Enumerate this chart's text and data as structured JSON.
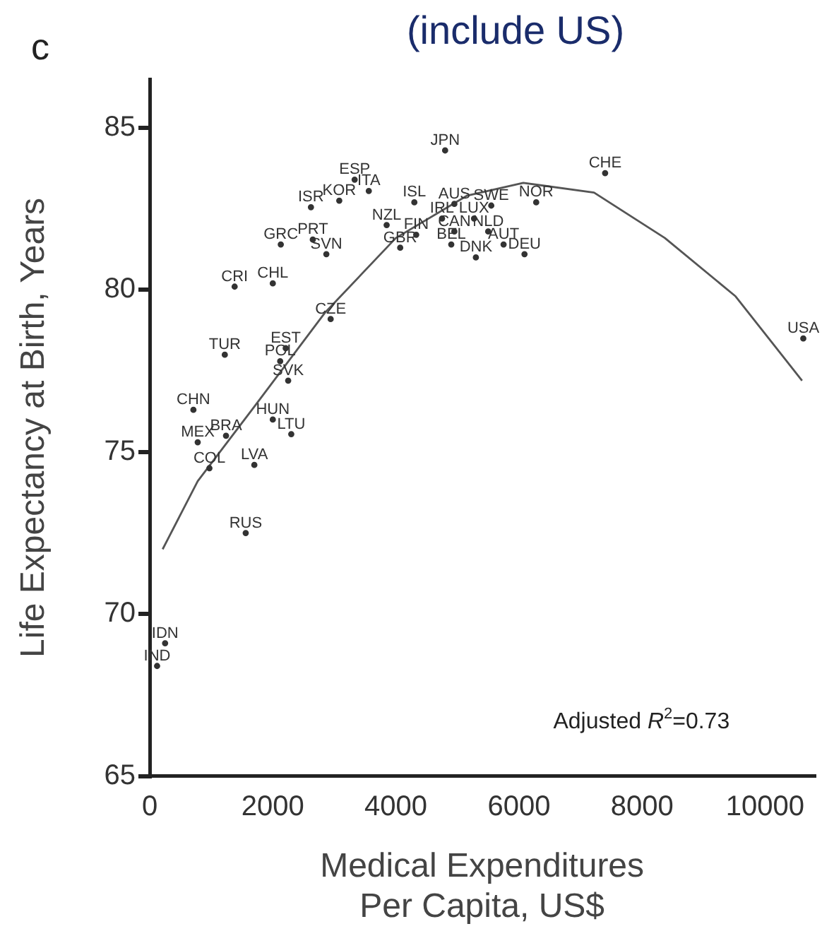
{
  "chart_data": {
    "type": "scatter",
    "title": "(include US)",
    "xlabel": "Medical Expenditures\nPer Capita, US$",
    "ylabel": "Life Expectancy at Birth, Years",
    "annotations": [
      "c",
      "Adjusted R$^{2}$=0.73"
    ],
    "xlim": [
      0,
      10800
    ],
    "ylim": [
      65,
      86.5
    ],
    "xticks": [
      0,
      2000,
      4000,
      6000,
      8000,
      10000
    ],
    "yticks": [
      65,
      70,
      75,
      80,
      85
    ],
    "grid": false,
    "legend": false,
    "series": [
      {
        "type": "scatter",
        "marker": "circle",
        "color": "#333333",
        "x": [
          4800,
          3330,
          3560,
          3080,
          2620,
          2130,
          2650,
          2870,
          1380,
          2000,
          2940,
          1220,
          2210,
          2120,
          2250,
          710,
          2000,
          2300,
          780,
          1240,
          970,
          1700,
          1560,
          250,
          120,
          4300,
          3850,
          4330,
          4070,
          4950,
          5550,
          4750,
          5270,
          4950,
          5500,
          4900,
          5750,
          5300,
          6090,
          6280,
          7400,
          10620
        ],
        "values": [
          84.3,
          83.4,
          83.05,
          82.75,
          82.55,
          81.4,
          81.55,
          81.1,
          80.1,
          80.2,
          79.1,
          78.0,
          78.2,
          77.8,
          77.2,
          76.3,
          76.0,
          75.55,
          75.3,
          75.5,
          74.5,
          74.6,
          72.5,
          69.1,
          68.4,
          82.7,
          82.0,
          81.7,
          81.3,
          82.65,
          82.6,
          82.2,
          82.2,
          81.8,
          81.8,
          81.4,
          81.4,
          81.0,
          81.1,
          82.7,
          83.6,
          78.5
        ],
        "value_labels": [
          "JPN",
          "ESP",
          "ITA",
          "KOR",
          "ISR",
          "GRC",
          "PRT",
          "SVN",
          "CRI",
          "CHL",
          "CZE",
          "TUR",
          "EST",
          "POL",
          "SVK",
          "CHN",
          "HUN",
          "LTU",
          "MEX",
          "BRA",
          "COL",
          "LVA",
          "RUS",
          "IDN",
          "IND",
          "ISL",
          "NZL",
          "FIN",
          "GBR",
          "AUS",
          "SWE",
          "IRL",
          "LUX",
          "CAN",
          "NLD",
          "BEL",
          "AUT",
          "DNK",
          "DEU",
          "NOR",
          "CHE",
          "USA"
        ]
      },
      {
        "type": "line",
        "color": "#555555",
        "line_style": "solid",
        "x": [
          210,
          780,
          1700,
          2850,
          4000,
          5150,
          6070,
          7220,
          8370,
          9520,
          10600
        ],
        "values": [
          72.0,
          74.1,
          76.4,
          79.3,
          81.6,
          82.9,
          83.3,
          83.0,
          81.6,
          79.8,
          77.2
        ]
      }
    ]
  }
}
